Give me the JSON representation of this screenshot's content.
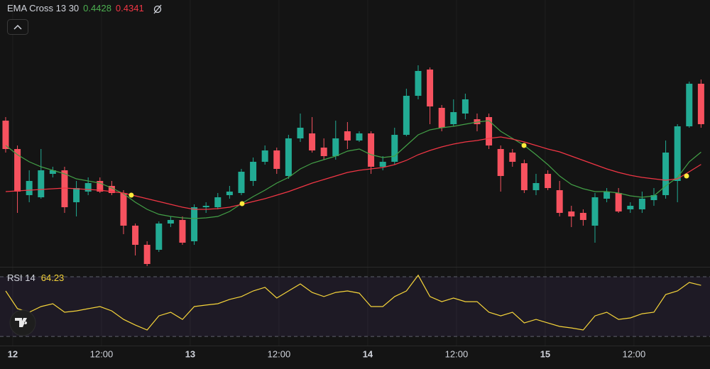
{
  "chart_data": [
    {
      "type": "candlestick",
      "indicator": "EMA Cross 13 30",
      "open": [
        0.465,
        0.445,
        0.4125,
        0.411,
        0.4275,
        0.43,
        0.4075,
        0.415,
        0.4225,
        0.419,
        0.414,
        0.391,
        0.3775,
        0.374,
        0.3925,
        0.395,
        0.38,
        0.404,
        0.404,
        0.4125,
        0.414,
        0.4225,
        0.436,
        0.444,
        0.426,
        0.4525,
        0.456,
        0.446,
        0.44,
        0.4575,
        0.451,
        0.456,
        0.4325,
        0.436,
        0.455,
        0.4825,
        0.501,
        0.474,
        0.4625,
        0.47,
        0.466,
        0.4675,
        0.445,
        0.4425,
        0.435,
        0.416,
        0.4275,
        0.416,
        0.401,
        0.4,
        0.391,
        0.41,
        0.414,
        0.4025,
        0.4025,
        0.409,
        0.4125,
        0.4225,
        0.461,
        0.491
      ],
      "high": [
        0.4675,
        0.4475,
        0.43,
        0.445,
        0.4325,
        0.4325,
        0.4225,
        0.425,
        0.425,
        0.4225,
        0.416,
        0.3925,
        0.38,
        0.394,
        0.3975,
        0.3975,
        0.406,
        0.4075,
        0.414,
        0.419,
        0.431,
        0.439,
        0.4475,
        0.446,
        0.455,
        0.47,
        0.4675,
        0.4525,
        0.465,
        0.464,
        0.4575,
        0.4575,
        0.44,
        0.46,
        0.4875,
        0.504,
        0.5025,
        0.476,
        0.48,
        0.484,
        0.47,
        0.47,
        0.4475,
        0.445,
        0.4375,
        0.4275,
        0.43,
        0.4225,
        0.405,
        0.4025,
        0.414,
        0.4175,
        0.4175,
        0.4075,
        0.415,
        0.4175,
        0.451,
        0.4625,
        0.4925,
        0.494
      ],
      "low": [
        0.4425,
        0.4,
        0.4075,
        0.41,
        0.425,
        0.4,
        0.3975,
        0.4125,
        0.414,
        0.4125,
        0.385,
        0.37,
        0.3625,
        0.3725,
        0.39,
        0.3775,
        0.3775,
        0.4,
        0.4025,
        0.41,
        0.4125,
        0.419,
        0.434,
        0.4275,
        0.424,
        0.45,
        0.4425,
        0.4375,
        0.4375,
        0.445,
        0.45,
        0.4275,
        0.43,
        0.434,
        0.454,
        0.48,
        0.4625,
        0.4575,
        0.461,
        0.466,
        0.4575,
        0.445,
        0.415,
        0.4325,
        0.414,
        0.4125,
        0.416,
        0.3975,
        0.39,
        0.391,
        0.379,
        0.4075,
        0.4,
        0.4,
        0.4,
        0.405,
        0.41,
        0.4075,
        0.46,
        0.46
      ],
      "close": [
        0.445,
        0.415,
        0.4225,
        0.43,
        0.43,
        0.404,
        0.4175,
        0.421,
        0.415,
        0.414,
        0.391,
        0.3775,
        0.364,
        0.3925,
        0.395,
        0.379,
        0.404,
        0.405,
        0.411,
        0.415,
        0.429,
        0.436,
        0.444,
        0.431,
        0.4525,
        0.46,
        0.444,
        0.44,
        0.4525,
        0.451,
        0.456,
        0.4325,
        0.436,
        0.455,
        0.4825,
        0.5,
        0.475,
        0.46,
        0.471,
        0.48,
        0.4625,
        0.4475,
        0.426,
        0.436,
        0.416,
        0.421,
        0.4175,
        0.4,
        0.3975,
        0.395,
        0.411,
        0.415,
        0.401,
        0.405,
        0.41,
        0.4125,
        0.4425,
        0.461,
        0.491,
        0.4625
      ],
      "up_color": "#22ab94",
      "down_color": "#f7525f",
      "series": [
        {
          "color": "#43a047",
          "values": [
            0.4475,
            0.441,
            0.436,
            0.4325,
            0.43,
            0.4275,
            0.424,
            0.4225,
            0.421,
            0.4175,
            0.4135,
            0.4075,
            0.4025,
            0.399,
            0.3975,
            0.3965,
            0.396,
            0.3965,
            0.3975,
            0.401,
            0.4065,
            0.4115,
            0.416,
            0.421,
            0.425,
            0.431,
            0.435,
            0.4375,
            0.44,
            0.4435,
            0.445,
            0.441,
            0.439,
            0.44,
            0.4475,
            0.455,
            0.4585,
            0.46,
            0.461,
            0.4625,
            0.464,
            0.465,
            0.4575,
            0.4525,
            0.4475,
            0.441,
            0.434,
            0.426,
            0.42,
            0.417,
            0.415,
            0.415,
            0.414,
            0.412,
            0.411,
            0.412,
            0.419,
            0.425,
            0.436,
            0.4428
          ]
        },
        {
          "color": "#f23645",
          "values": [
            0.415,
            0.4155,
            0.416,
            0.4165,
            0.417,
            0.4175,
            0.417,
            0.4165,
            0.416,
            0.415,
            0.414,
            0.412,
            0.41,
            0.408,
            0.406,
            0.404,
            0.4025,
            0.4025,
            0.403,
            0.404,
            0.406,
            0.408,
            0.41,
            0.4125,
            0.415,
            0.418,
            0.421,
            0.4235,
            0.426,
            0.4285,
            0.43,
            0.431,
            0.432,
            0.434,
            0.437,
            0.441,
            0.444,
            0.4465,
            0.4485,
            0.45,
            0.451,
            0.4525,
            0.4535,
            0.452,
            0.45,
            0.4475,
            0.445,
            0.443,
            0.44,
            0.437,
            0.434,
            0.431,
            0.4285,
            0.4265,
            0.425,
            0.424,
            0.423,
            0.424,
            0.429,
            0.4341
          ]
        }
      ],
      "cross_markers": {
        "color": "#ffeb3b",
        "x": [
          10.66,
          20.06,
          43.98,
          57.77
        ],
        "values": [
          0.4125,
          0.4065,
          0.4475,
          0.426
        ]
      },
      "xlim": [
        -0.48,
        59.76
      ],
      "ylim": [
        0.3625,
        0.55
      ]
    },
    {
      "type": "line",
      "indicator": "RSI 14",
      "color": "#f5d43a",
      "values": [
        60.5,
        48.6,
        46.2,
        50,
        51.9,
        46.2,
        47.1,
        48.6,
        50,
        47.1,
        41.4,
        37.6,
        34.3,
        43.8,
        46.2,
        41.4,
        50,
        51,
        51.9,
        54.8,
        56.7,
        60.5,
        62.9,
        55.7,
        60.5,
        65.2,
        59.5,
        56.7,
        59.5,
        60.5,
        59,
        50,
        50,
        56.7,
        60.5,
        71,
        56.7,
        53.3,
        55.7,
        53.3,
        53.3,
        46.2,
        43.8,
        46.2,
        39,
        41.4,
        39,
        36.7,
        35.7,
        34.3,
        43.8,
        46.2,
        41.4,
        42.4,
        45.2,
        46.2,
        58.1,
        60.5,
        66.2,
        64.23
      ],
      "bands": [
        30,
        70
      ],
      "xlim": [
        -0.48,
        59.76
      ],
      "ylim": [
        24.8,
        75.7
      ],
      "xticks": [
        {
          "value": 0.6,
          "label": "12"
        },
        {
          "value": 8.13,
          "label": "12:00"
        },
        {
          "value": 15.66,
          "label": "13"
        },
        {
          "value": 23.19,
          "label": "12:00"
        },
        {
          "value": 30.72,
          "label": "14"
        },
        {
          "value": 38.25,
          "label": "12:00"
        },
        {
          "value": 45.78,
          "label": "15"
        },
        {
          "value": 53.31,
          "label": "12:00"
        }
      ]
    }
  ]
}
